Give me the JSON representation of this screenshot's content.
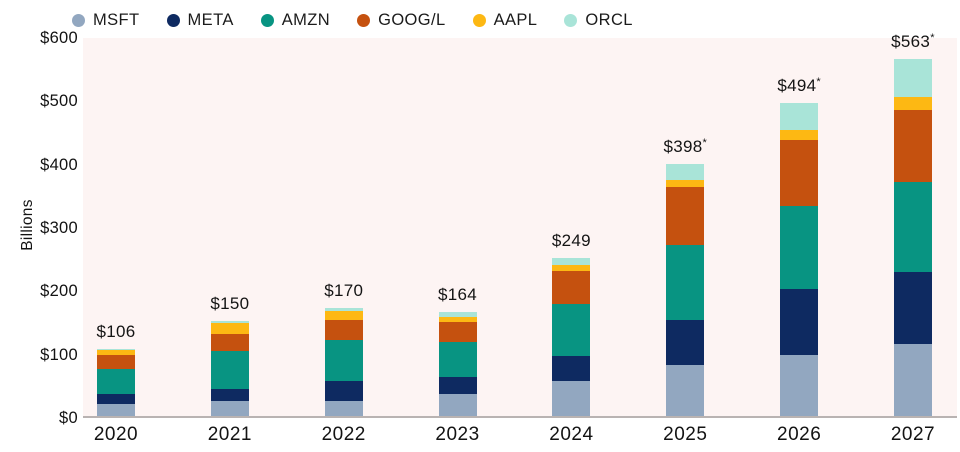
{
  "chart_data": {
    "type": "bar",
    "stacked": true,
    "title": "",
    "xlabel": "",
    "ylabel": "Billions",
    "ylim": [
      0,
      600
    ],
    "grid": false,
    "legend_position": "top",
    "plot_background": "#fdf4f3",
    "axis_line_color": "#b9b3b2",
    "categories": [
      "2020",
      "2021",
      "2022",
      "2023",
      "2024",
      "2025",
      "2026",
      "2027"
    ],
    "series": [
      {
        "name": "MSFT",
        "color": "#92a7c0",
        "values": [
          19,
          23,
          23,
          35,
          55,
          80,
          96,
          114
        ]
      },
      {
        "name": "META",
        "color": "#0e2a61",
        "values": [
          16,
          19,
          33,
          27,
          39,
          72,
          105,
          113
        ]
      },
      {
        "name": "AMZN",
        "color": "#089482",
        "values": [
          40,
          61,
          64,
          55,
          83,
          118,
          131,
          142
        ]
      },
      {
        "name": "GOOG/L",
        "color": "#c5510f",
        "values": [
          22,
          27,
          31,
          32,
          52,
          91,
          104,
          114
        ]
      },
      {
        "name": "AAPL",
        "color": "#fdb813",
        "values": [
          7,
          17,
          15,
          8,
          10,
          12,
          15,
          20
        ]
      },
      {
        "name": "ORCL",
        "color": "#a9e4d8",
        "values": [
          2,
          3,
          4,
          7,
          10,
          25,
          43,
          60
        ]
      }
    ],
    "totals_labels": [
      "$106",
      "$150",
      "$170",
      "$164",
      "$249",
      "$398*",
      "$494*",
      "$563*"
    ],
    "y_ticks": [
      "$0",
      "$100",
      "$200",
      "$300",
      "$400",
      "$500",
      "$600"
    ]
  }
}
